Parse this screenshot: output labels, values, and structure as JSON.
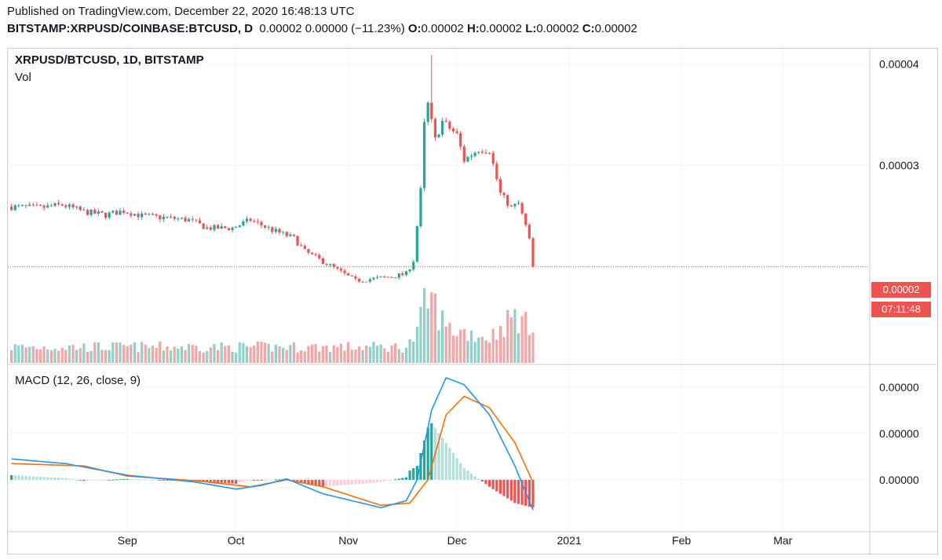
{
  "header": {
    "published": "Published on TradingView.com, December 22, 2020 16:48:13 UTC",
    "symbol_line": "BITSTAMP:XRPUSD/COINBASE:BTCUSD, D",
    "quote": "0.00002 0.00000 (−11.23%)",
    "o_label": "O:",
    "o_value": "0.00002",
    "h_label": "H:",
    "h_value": "0.00002",
    "l_label": "L:",
    "l_value": "0.00002",
    "c_label": "C:",
    "c_value": "0.00002"
  },
  "pane": {
    "title": "XRPUSD/BTCUSD, 1D, BITSTAMP",
    "volume_label": "Vol",
    "macd_label": "MACD (12, 26, close, 9)",
    "last_price_tag": "0.00002",
    "countdown_tag": "07:11:48"
  },
  "colors": {
    "up": "#26a69a",
    "down": "#ef5350",
    "vol_up": "#8fd0c8",
    "vol_down": "#f3a6a6",
    "macd_line": "#2196f3",
    "signal_line": "#ff6d00",
    "hist_up_strong": "#26a69a",
    "hist_up_weak": "#b2dfdb",
    "hist_down_strong": "#ef5350",
    "hist_down_weak": "#ffcdd2",
    "grid": "#f0f3fa"
  },
  "chart_data": {
    "type": "candlestick",
    "price_axis_ticks": [
      "0.00004",
      "0.00003",
      "0.00002"
    ],
    "price_axis_values": [
      4e-05,
      3e-05,
      2e-05
    ],
    "price_range": [
      1.53e-05,
      4.15e-05
    ],
    "x_ticks": [
      "Sep",
      "Oct",
      "Nov",
      "Dec",
      "2021",
      "Feb",
      "Mar"
    ],
    "x_tick_dates": [
      "2020-09-01",
      "2020-10-01",
      "2020-11-01",
      "2020-12-01",
      "2021-01-01",
      "2021-02-01",
      "2021-03-01"
    ],
    "x_range_dates": [
      "2020-07-30",
      "2021-03-25"
    ],
    "last_close": 2e-05,
    "anchors_date_close": [
      [
        "2020-07-31",
        2.59e-05
      ],
      [
        "2020-08-08",
        2.58e-05
      ],
      [
        "2020-08-14",
        2.61e-05
      ],
      [
        "2020-08-20",
        2.54e-05
      ],
      [
        "2020-08-26",
        2.51e-05
      ],
      [
        "2020-08-31",
        2.55e-05
      ],
      [
        "2020-09-05",
        2.5e-05
      ],
      [
        "2020-09-12",
        2.48e-05
      ],
      [
        "2020-09-18",
        2.46e-05
      ],
      [
        "2020-09-23",
        2.38e-05
      ],
      [
        "2020-09-30",
        2.38e-05
      ],
      [
        "2020-10-05",
        2.46e-05
      ],
      [
        "2020-10-11",
        2.36e-05
      ],
      [
        "2020-10-17",
        2.28e-05
      ],
      [
        "2020-10-20",
        2.15e-05
      ],
      [
        "2020-10-26",
        2.03e-05
      ],
      [
        "2020-11-03",
        1.86e-05
      ],
      [
        "2020-11-08",
        1.88e-05
      ],
      [
        "2020-11-13",
        1.9e-05
      ],
      [
        "2020-11-17",
        1.93e-05
      ],
      [
        "2020-11-19",
        2.06e-05
      ],
      [
        "2020-11-20",
        2.4e-05
      ],
      [
        "2020-11-21",
        2.75e-05
      ],
      [
        "2020-11-22",
        3.4e-05
      ],
      [
        "2020-11-23",
        3.6e-05
      ],
      [
        "2020-11-25",
        3.25e-05
      ],
      [
        "2020-11-27",
        3.43e-05
      ],
      [
        "2020-12-01",
        3.3e-05
      ],
      [
        "2020-12-03",
        3.05e-05
      ],
      [
        "2020-12-07",
        3.16e-05
      ],
      [
        "2020-12-10",
        3.15e-05
      ],
      [
        "2020-12-13",
        2.72e-05
      ],
      [
        "2020-12-16",
        2.58e-05
      ],
      [
        "2020-12-18",
        2.62e-05
      ],
      [
        "2020-12-20",
        2.4e-05
      ],
      [
        "2020-12-21",
        2.26e-05
      ],
      [
        "2020-12-22",
        2e-05
      ]
    ],
    "spike_high": {
      "date": "2020-11-24",
      "value": 4.08e-05
    },
    "volume_anchors": [
      [
        "2020-07-31",
        0.25
      ],
      [
        "2020-11-17",
        0.25
      ],
      [
        "2020-11-20",
        0.45
      ],
      [
        "2020-11-22",
        0.95
      ],
      [
        "2020-11-24",
        1.0
      ],
      [
        "2020-11-28",
        0.55
      ],
      [
        "2020-12-10",
        0.4
      ],
      [
        "2020-12-17",
        0.75
      ],
      [
        "2020-12-22",
        0.5
      ]
    ],
    "macd_anchors": [
      [
        "2020-07-31",
        0.45
      ],
      [
        "2020-08-15",
        0.35
      ],
      [
        "2020-09-01",
        0.1
      ],
      [
        "2020-09-20",
        -0.05
      ],
      [
        "2020-10-01",
        -0.2
      ],
      [
        "2020-10-08",
        -0.12
      ],
      [
        "2020-10-15",
        0.02
      ],
      [
        "2020-10-25",
        -0.3
      ],
      [
        "2020-11-10",
        -0.6
      ],
      [
        "2020-11-17",
        -0.45
      ],
      [
        "2020-11-20",
        0.0
      ],
      [
        "2020-11-24",
        1.5
      ],
      [
        "2020-11-28",
        2.2
      ],
      [
        "2020-12-03",
        2.05
      ],
      [
        "2020-12-10",
        1.4
      ],
      [
        "2020-12-17",
        0.3
      ],
      [
        "2020-12-22",
        -0.65
      ]
    ],
    "signal_anchors": [
      [
        "2020-07-31",
        0.35
      ],
      [
        "2020-08-20",
        0.3
      ],
      [
        "2020-09-01",
        0.08
      ],
      [
        "2020-09-20",
        -0.02
      ],
      [
        "2020-10-05",
        -0.15
      ],
      [
        "2020-10-15",
        0.0
      ],
      [
        "2020-10-25",
        -0.15
      ],
      [
        "2020-11-10",
        -0.55
      ],
      [
        "2020-11-18",
        -0.5
      ],
      [
        "2020-11-23",
        0.0
      ],
      [
        "2020-11-28",
        1.4
      ],
      [
        "2020-12-03",
        1.8
      ],
      [
        "2020-12-10",
        1.55
      ],
      [
        "2020-12-17",
        0.8
      ],
      [
        "2020-12-22",
        -0.05
      ]
    ],
    "macd_axis_ticks": [
      "0.00000",
      "0.00000",
      "0.00000"
    ],
    "macd_axis_values": [
      2.0,
      1.0,
      0.0
    ],
    "macd_range": [
      -1.0,
      2.25
    ]
  }
}
